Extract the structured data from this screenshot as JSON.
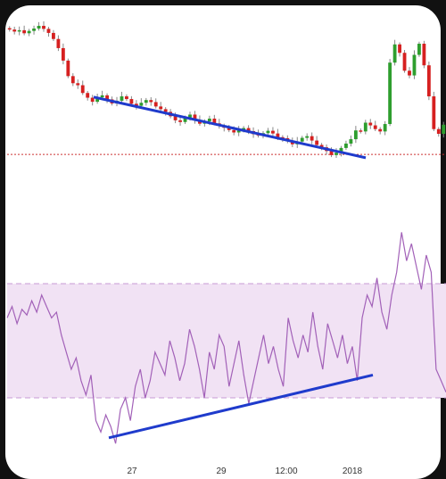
{
  "chart_data": [
    {
      "type": "candlestick",
      "title": "",
      "xlabel": "",
      "ylabel": "",
      "grid": false,
      "colors": {
        "up": "#2e9e2e",
        "down": "#d62020",
        "wick": "#888888",
        "support_line": "#cc3333",
        "trendline": "#1f3bcc"
      },
      "series": [
        {
          "values": [
            100,
            99.4,
            99.8,
            98.9,
            99.6,
            100.3,
            101.1,
            100.2,
            99.0,
            97.2,
            94.5,
            90.8,
            86.2,
            84.1,
            83.5,
            81.2,
            79.8,
            78.6,
            79.9,
            80.5,
            79.3,
            78.1,
            78.9,
            80.2,
            79.4,
            78.0,
            77.4,
            78.3,
            79.1,
            78.5,
            77.2,
            76.4,
            75.6,
            74.3,
            73.1,
            72.6,
            73.9,
            74.8,
            73.2,
            72.1,
            72.8,
            73.6,
            72.2,
            71.5,
            70.9,
            70.2,
            69.5,
            70.1,
            70.8,
            69.9,
            69.0,
            68.6,
            69.3,
            70.0,
            69.2,
            68.1,
            67.8,
            66.9,
            66.0,
            66.8,
            67.9,
            68.4,
            67.1,
            65.8,
            65.1,
            64.0,
            62.8,
            63.5,
            64.9,
            66.2,
            67.5,
            70.1,
            69.8,
            72.4,
            71.6,
            70.5,
            69.8,
            72.0,
            90.2,
            95.6,
            93.1,
            87.8,
            86.4,
            92.5,
            95.8,
            89.4,
            80.2,
            70.5,
            69.1,
            71.8
          ]
        }
      ],
      "support_level": 63.0,
      "trendline": {
        "from": 80.0,
        "to": 62.0
      },
      "xlim_index": [
        0,
        90
      ],
      "ylim": [
        58,
        104
      ]
    },
    {
      "type": "line",
      "title": "",
      "xlabel": "",
      "ylabel": "",
      "grid": false,
      "colors": {
        "line": "#a261b8",
        "band_fill": "#f1e2f4",
        "band_border": "#c79bd6",
        "trendline": "#1f3bcc"
      },
      "x_tick_labels": [
        "27",
        "29",
        "12:00",
        "2018"
      ],
      "band": [
        30,
        70
      ],
      "ylim": [
        10,
        95
      ],
      "series": [
        {
          "values": [
            58,
            62,
            56,
            61,
            59,
            64,
            60,
            66,
            62,
            58,
            60,
            52,
            46,
            40,
            44,
            36,
            31,
            38,
            22,
            18,
            24,
            20,
            14,
            26,
            30,
            22,
            34,
            40,
            30,
            36,
            46,
            42,
            38,
            50,
            44,
            36,
            42,
            54,
            48,
            40,
            30,
            46,
            40,
            52,
            48,
            34,
            42,
            50,
            38,
            28,
            36,
            44,
            52,
            42,
            48,
            40,
            34,
            58,
            50,
            44,
            52,
            46,
            60,
            48,
            40,
            56,
            50,
            44,
            52,
            42,
            48,
            36,
            58,
            66,
            62,
            72,
            60,
            54,
            66,
            74,
            88,
            78,
            84,
            76,
            68,
            80,
            74,
            40,
            36,
            32
          ]
        }
      ],
      "trendline": {
        "from": 16,
        "to": 38
      }
    }
  ]
}
